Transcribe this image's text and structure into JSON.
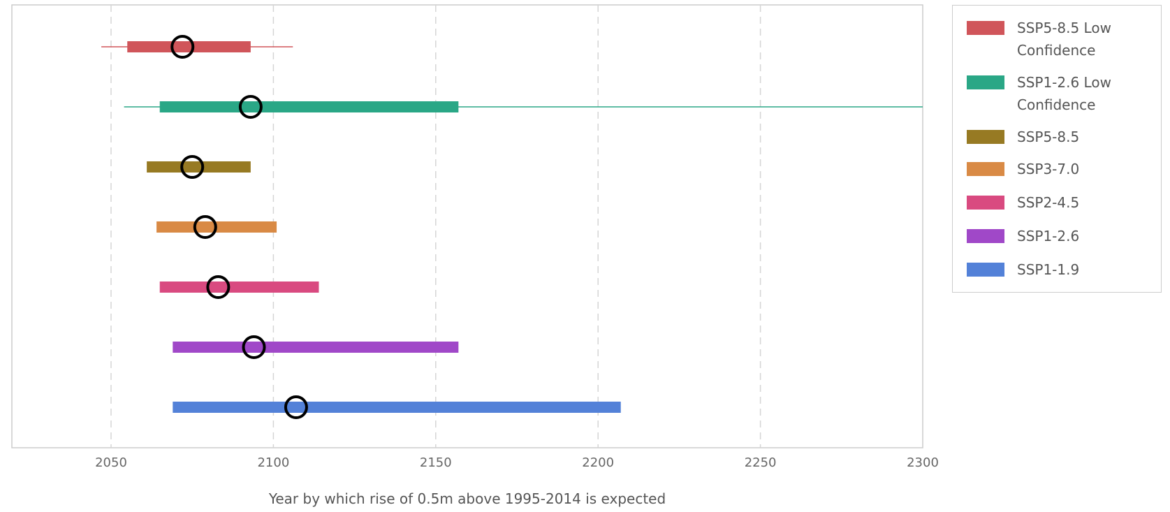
{
  "chart_data": {
    "type": "range",
    "title": "",
    "xlabel": "Year by which rise of 0.5m above 1995-2014 is expected",
    "ylabel": "",
    "xlim": [
      2035,
      2300
    ],
    "xticks": [
      2050,
      2100,
      2150,
      2200,
      2250,
      2300
    ],
    "grid": "vertical-dashed",
    "legend_position": "right",
    "series": [
      {
        "name": "SSP5-8.5 Low Confidence",
        "color": "#d0555a",
        "whisker_low": 2047,
        "low": 2055,
        "median": 2072,
        "high": 2093,
        "whisker_high": 2106
      },
      {
        "name": "SSP1-2.6 Low Confidence",
        "color": "#2aa786",
        "whisker_low": 2054,
        "low": 2065,
        "median": 2093,
        "high": 2157,
        "whisker_high": 2300
      },
      {
        "name": "SSP5-8.5",
        "color": "#977a23",
        "low": 2061,
        "median": 2075,
        "high": 2093
      },
      {
        "name": "SSP3-7.0",
        "color": "#d98a45",
        "low": 2064,
        "median": 2079,
        "high": 2101
      },
      {
        "name": "SSP2-4.5",
        "color": "#d94a80",
        "low": 2065,
        "median": 2083,
        "high": 2114
      },
      {
        "name": "SSP1-2.6",
        "color": "#a048c8",
        "low": 2069,
        "median": 2094,
        "high": 2157
      },
      {
        "name": "SSP1-1.9",
        "color": "#5381d8",
        "low": 2069,
        "median": 2107,
        "high": 2207
      }
    ]
  }
}
